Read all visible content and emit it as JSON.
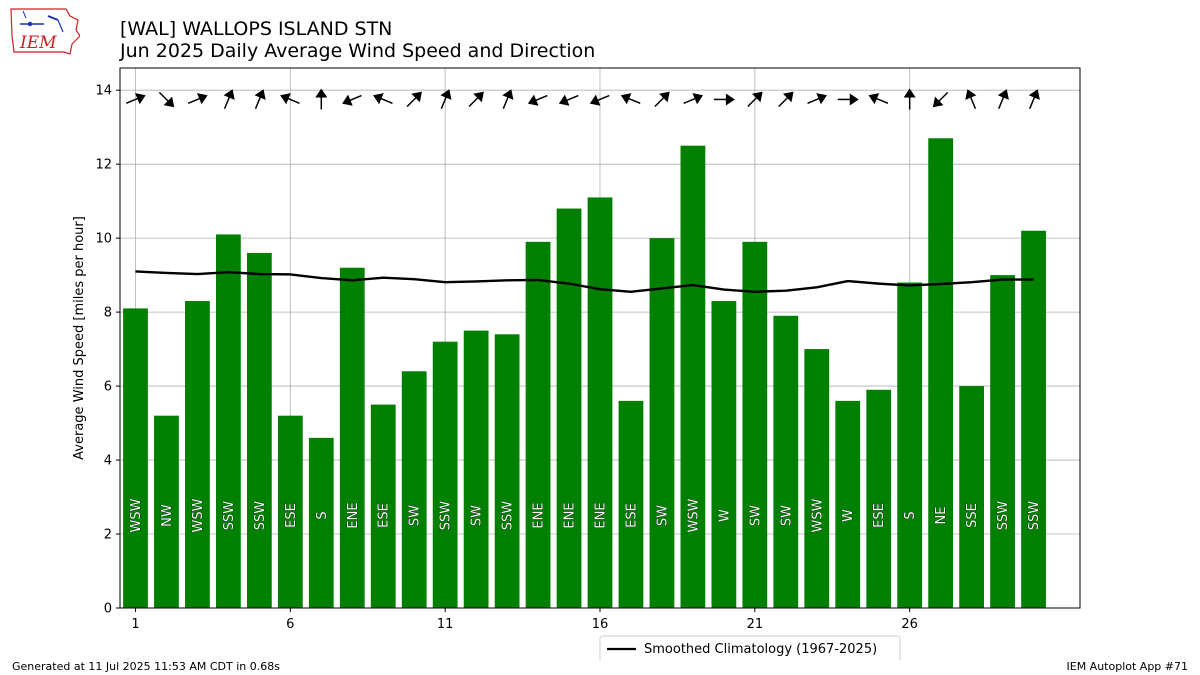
{
  "title_line1": "[WAL] WALLOPS ISLAND STN",
  "title_line2": "Jun 2025 Daily Average Wind Speed and Direction",
  "footer_left": "Generated at 11 Jul 2025 11:53 AM CDT in 0.68s",
  "footer_right": "IEM Autoplot App #71",
  "logo_text": "IEM",
  "colors": {
    "bar": "#008000",
    "climo": "#000000",
    "grid": "#b0b0b0",
    "logo": "#cc2222"
  },
  "chart_data": {
    "type": "bar",
    "title": "[WAL] WALLOPS ISLAND STN",
    "subtitle": "Jun 2025 Daily Average Wind Speed and Direction",
    "xlabel": "",
    "ylabel": "Average Wind Speed [miles per hour]",
    "ylim": [
      0,
      14.6
    ],
    "xlim": [
      0.5,
      31.5
    ],
    "xticks": [
      1,
      6,
      11,
      16,
      21,
      26
    ],
    "yticks": [
      0,
      2,
      4,
      6,
      8,
      10,
      12,
      14
    ],
    "grid": true,
    "legend_position": "below-right",
    "days": [
      1,
      2,
      3,
      4,
      5,
      6,
      7,
      8,
      9,
      10,
      11,
      12,
      13,
      14,
      15,
      16,
      17,
      18,
      19,
      20,
      21,
      22,
      23,
      24,
      25,
      26,
      27,
      28,
      29,
      30
    ],
    "speed": [
      8.1,
      5.2,
      8.3,
      10.1,
      9.6,
      5.2,
      4.6,
      9.2,
      5.5,
      6.4,
      7.2,
      7.5,
      7.4,
      9.9,
      10.8,
      11.1,
      5.6,
      10.0,
      12.5,
      8.3,
      9.9,
      7.9,
      7.0,
      5.6,
      5.9,
      8.8,
      12.7,
      6.0,
      9.0,
      10.2
    ],
    "direction_labels": [
      "WSW",
      "NW",
      "WSW",
      "SSW",
      "SSW",
      "ESE",
      "S",
      "ENE",
      "ESE",
      "SW",
      "SSW",
      "SW",
      "SSW",
      "ENE",
      "ENE",
      "ENE",
      "ESE",
      "SW",
      "WSW",
      "W",
      "SW",
      "SW",
      "WSW",
      "W",
      "ESE",
      "S",
      "NE",
      "SSE",
      "SSW",
      "SSW"
    ],
    "climatology": {
      "name": "Smoothed Climatology (1967-2025)",
      "values": [
        9.1,
        9.06,
        9.03,
        9.08,
        9.03,
        9.02,
        8.92,
        8.86,
        8.93,
        8.89,
        8.81,
        8.83,
        8.86,
        8.87,
        8.77,
        8.62,
        8.55,
        8.64,
        8.73,
        8.61,
        8.55,
        8.58,
        8.67,
        8.84,
        8.77,
        8.72,
        8.76,
        8.81,
        8.88,
        8.88
      ]
    }
  }
}
